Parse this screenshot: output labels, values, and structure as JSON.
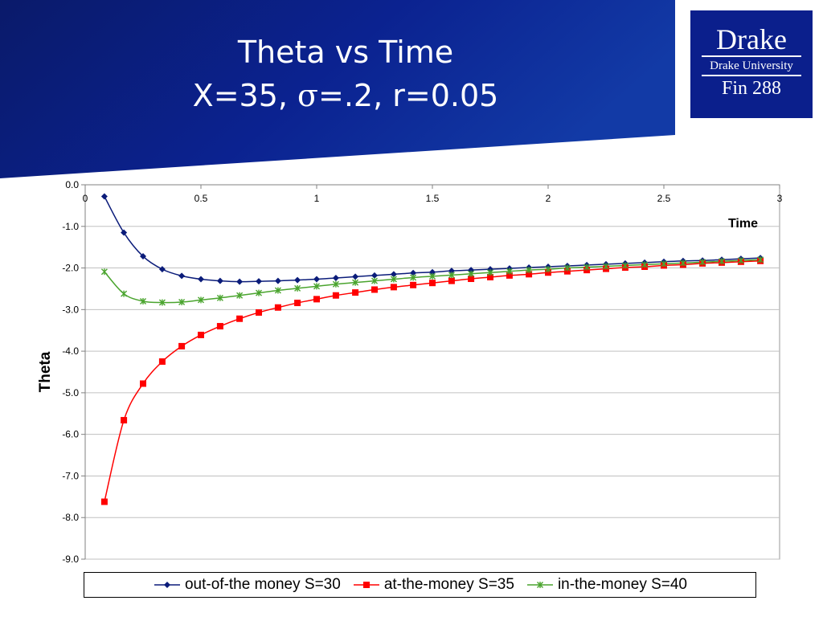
{
  "slide": {
    "title_line1": "Theta vs Time",
    "title_line2_prefix": "X=35, ",
    "title_line2_sigma": "σ",
    "title_line2_suffix": "=.2, r=0.05",
    "banner_color": "#0b1f8c"
  },
  "logo": {
    "name": "Drake",
    "university": "Drake University",
    "course": "Fin 288"
  },
  "chart_data": {
    "type": "line",
    "xlabel": "Time",
    "ylabel": "Theta",
    "xlim": [
      0,
      3
    ],
    "ylim": [
      -9.0,
      0.0
    ],
    "x_ticks": [
      "0",
      "0.5",
      "1",
      "1.5",
      "2",
      "2.5",
      "3"
    ],
    "y_ticks": [
      "0.0",
      "-1.0",
      "-2.0",
      "-3.0",
      "-4.0",
      "-5.0",
      "-6.0",
      "-7.0",
      "-8.0",
      "-9.0"
    ],
    "x_axis_position": "top",
    "grid": "horizontal",
    "legend_position": "bottom",
    "x": [
      0.083,
      0.167,
      0.25,
      0.333,
      0.417,
      0.5,
      0.583,
      0.667,
      0.75,
      0.833,
      0.917,
      1.0,
      1.083,
      1.167,
      1.25,
      1.333,
      1.417,
      1.5,
      1.583,
      1.667,
      1.75,
      1.833,
      1.917,
      2.0,
      2.083,
      2.167,
      2.25,
      2.333,
      2.417,
      2.5,
      2.583,
      2.667,
      2.75,
      2.833,
      2.917
    ],
    "series": [
      {
        "name": "out-of-the money S=30",
        "color": "#0b1c7a",
        "marker": "diamond",
        "values": [
          -0.28,
          -1.15,
          -1.72,
          -2.03,
          -2.19,
          -2.27,
          -2.31,
          -2.33,
          -2.32,
          -2.31,
          -2.29,
          -2.27,
          -2.24,
          -2.21,
          -2.18,
          -2.15,
          -2.12,
          -2.1,
          -2.07,
          -2.05,
          -2.03,
          -2.01,
          -1.99,
          -1.97,
          -1.95,
          -1.93,
          -1.91,
          -1.89,
          -1.87,
          -1.85,
          -1.83,
          -1.82,
          -1.8,
          -1.78,
          -1.76
        ]
      },
      {
        "name": "at-the-money S=35",
        "color": "#ff0000",
        "marker": "square",
        "values": [
          -7.62,
          -5.66,
          -4.78,
          -4.25,
          -3.88,
          -3.61,
          -3.4,
          -3.22,
          -3.07,
          -2.95,
          -2.84,
          -2.75,
          -2.66,
          -2.59,
          -2.52,
          -2.46,
          -2.41,
          -2.36,
          -2.31,
          -2.26,
          -2.22,
          -2.18,
          -2.15,
          -2.11,
          -2.08,
          -2.05,
          -2.02,
          -1.99,
          -1.97,
          -1.94,
          -1.92,
          -1.89,
          -1.87,
          -1.85,
          -1.83
        ]
      },
      {
        "name": "in-the-money S=40",
        "color": "#4aa42e",
        "marker": "asterisk",
        "values": [
          -2.09,
          -2.62,
          -2.8,
          -2.83,
          -2.82,
          -2.77,
          -2.72,
          -2.66,
          -2.6,
          -2.54,
          -2.49,
          -2.44,
          -2.39,
          -2.35,
          -2.31,
          -2.27,
          -2.23,
          -2.2,
          -2.17,
          -2.14,
          -2.11,
          -2.08,
          -2.05,
          -2.03,
          -2.0,
          -1.98,
          -1.96,
          -1.94,
          -1.92,
          -1.9,
          -1.88,
          -1.86,
          -1.84,
          -1.82,
          -1.8
        ]
      }
    ]
  }
}
